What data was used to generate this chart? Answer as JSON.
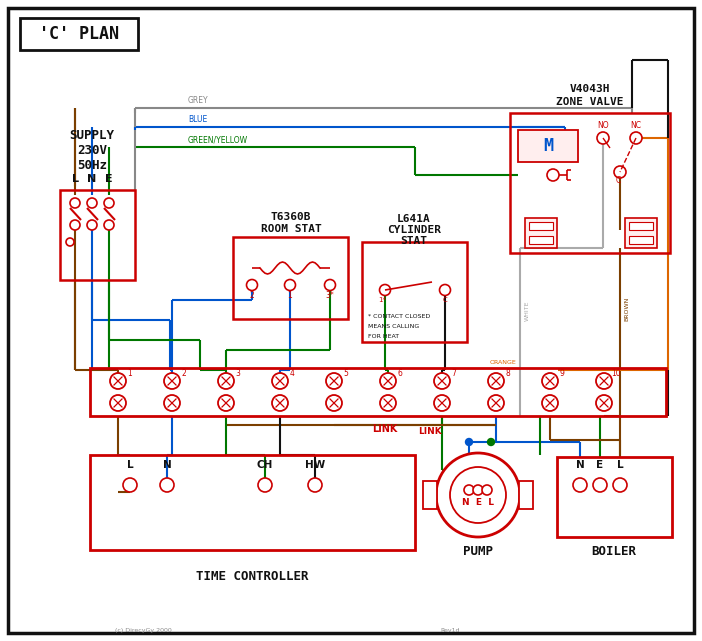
{
  "title": "'C' PLAN",
  "red": "#cc0000",
  "blue": "#0055cc",
  "green": "#007700",
  "grey": "#888888",
  "brown": "#7B3F00",
  "orange": "#DD6600",
  "black": "#111111",
  "white_wire": "#aaaaaa",
  "supply_text_lines": [
    "SUPPLY",
    "230V",
    "50Hz"
  ],
  "zone_valve_title_lines": [
    "V4043H",
    "ZONE VALVE"
  ],
  "room_stat_title_lines": [
    "T6360B",
    "ROOM STAT"
  ],
  "cyl_stat_title_lines": [
    "L641A",
    "CYLINDER",
    "STAT"
  ],
  "time_ctrl_label": "TIME CONTROLLER",
  "pump_label": "PUMP",
  "boiler_label": "BOILER",
  "link_label": "LINK",
  "contact_note_lines": [
    "* CONTACT CLOSED",
    "MEANS CALLING",
    "FOR HEAT"
  ],
  "copyright": "(c) DirecyGy 2000",
  "revtext": "Rev1d"
}
